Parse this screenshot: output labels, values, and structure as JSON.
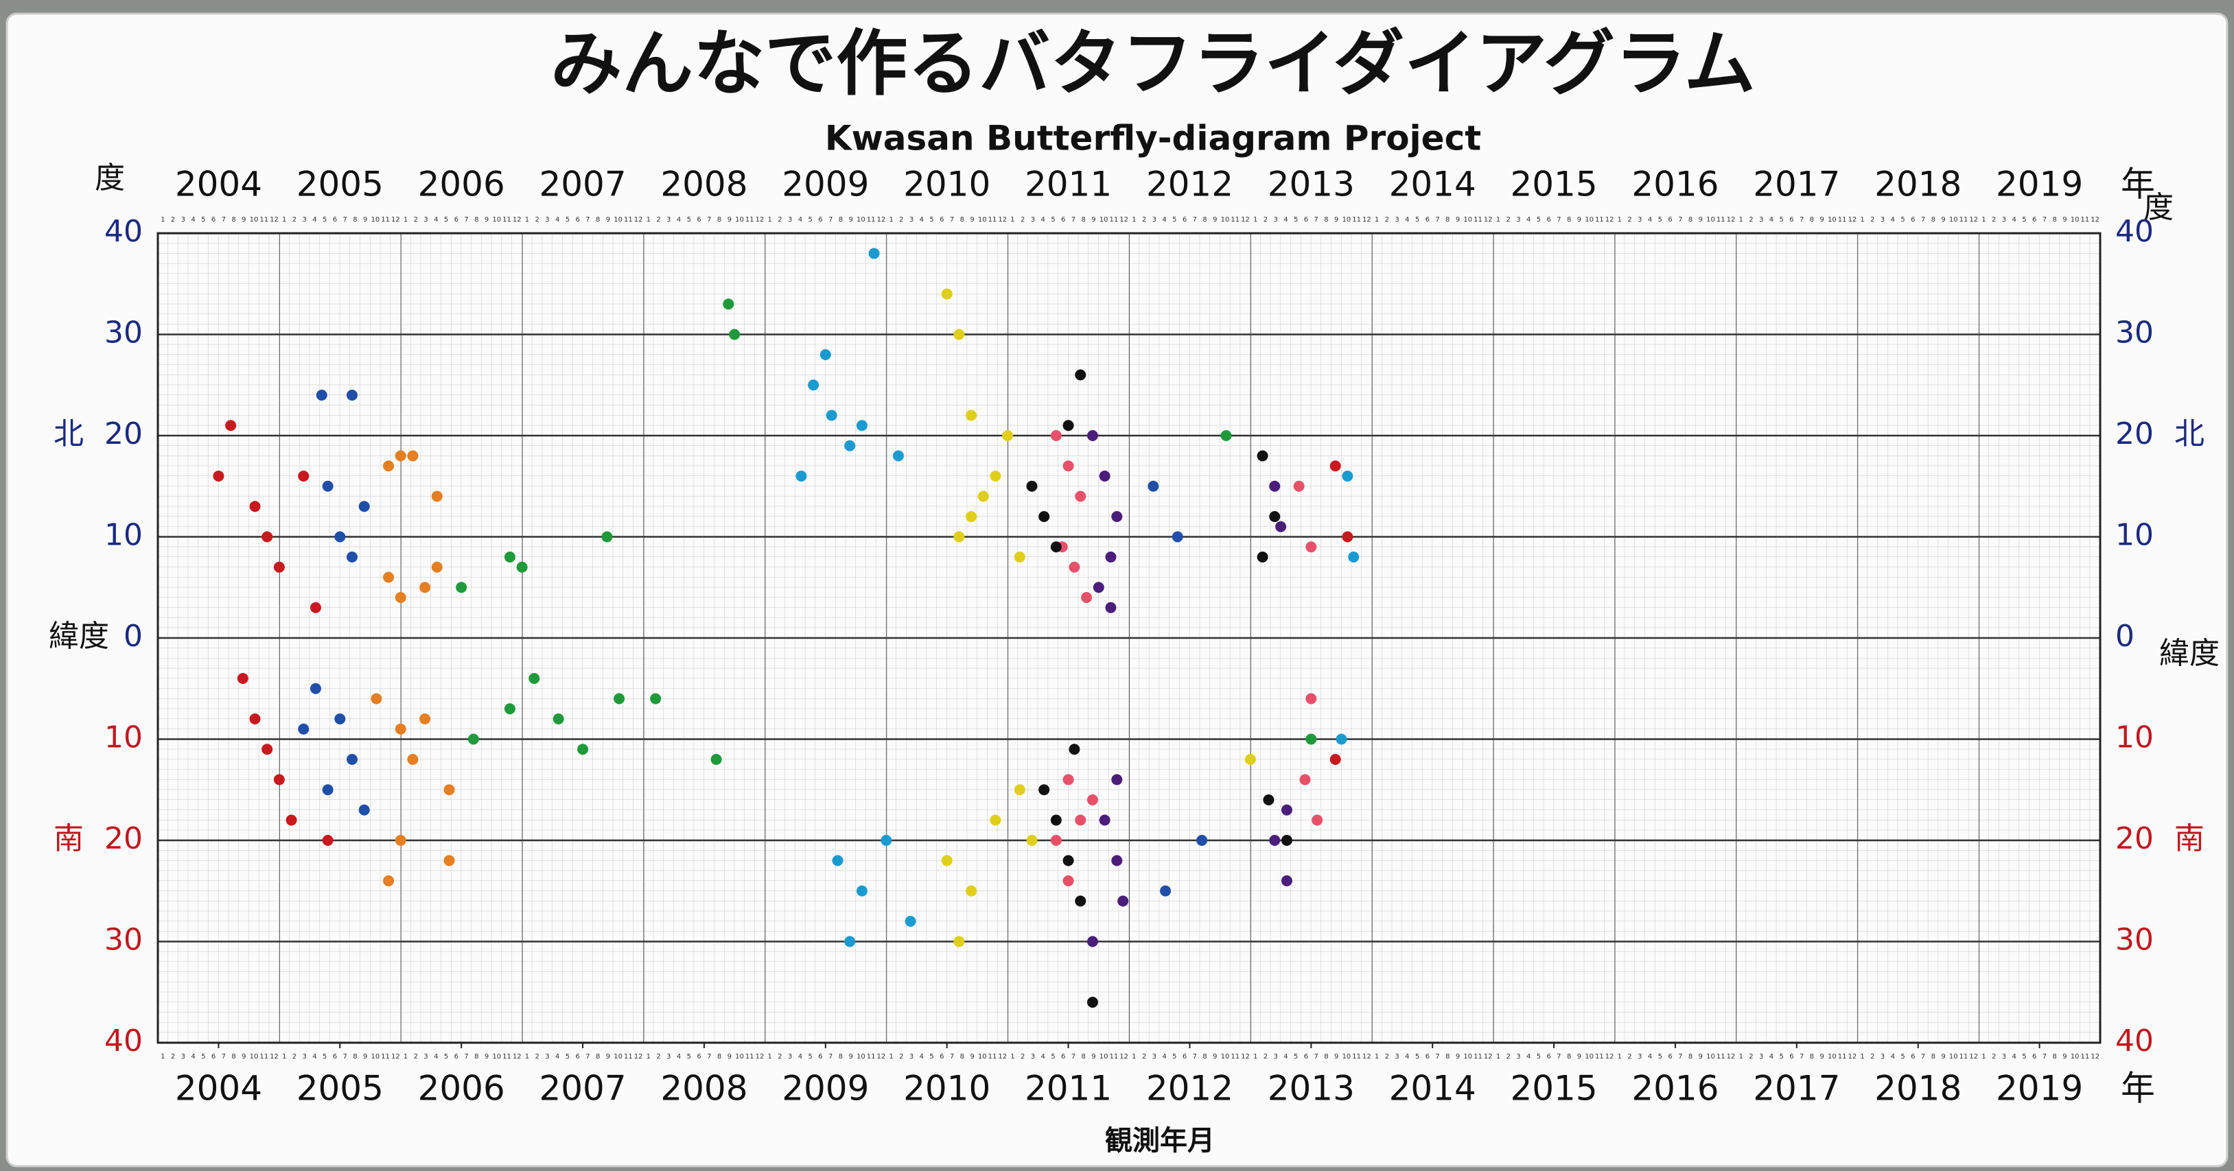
{
  "chart_data": {
    "type": "scatter",
    "title": "みんなで作るバタフライダイアグラム",
    "subtitle": "Kwasan Butterfly-diagram Project",
    "x_label": "観測年月",
    "y_label": "緯度",
    "y_unit": "度",
    "x_unit": "年",
    "north_label": "北",
    "south_label": "南",
    "months": [
      1,
      2,
      3,
      4,
      5,
      6,
      7,
      8,
      9,
      10,
      11,
      12
    ],
    "xlim": [
      2004,
      2020
    ],
    "xticks": [
      {
        "value": 2004.5,
        "label": "2004"
      },
      {
        "value": 2005.5,
        "label": "2005"
      },
      {
        "value": 2006.5,
        "label": "2006"
      },
      {
        "value": 2007.5,
        "label": "2007"
      },
      {
        "value": 2008.5,
        "label": "2008"
      },
      {
        "value": 2009.5,
        "label": "2009"
      },
      {
        "value": 2010.5,
        "label": "2010"
      },
      {
        "value": 2011.5,
        "label": "2011"
      },
      {
        "value": 2012.5,
        "label": "2012"
      },
      {
        "value": 2013.5,
        "label": "2013"
      },
      {
        "value": 2014.5,
        "label": "2014"
      },
      {
        "value": 2015.5,
        "label": "2015"
      },
      {
        "value": 2016.5,
        "label": "2016"
      },
      {
        "value": 2017.5,
        "label": "2017"
      },
      {
        "value": 2018.5,
        "label": "2018"
      },
      {
        "value": 2019.5,
        "label": "2019"
      }
    ],
    "ylim": [
      -40,
      40
    ],
    "yticks": [
      40,
      30,
      20,
      10,
      0,
      {
        "value": -10,
        "label": "10"
      },
      {
        "value": -20,
        "label": "20"
      },
      {
        "value": -30,
        "label": "30"
      },
      {
        "value": -40,
        "label": "40"
      }
    ],
    "grid": true,
    "series": [
      {
        "color": "#c8191e",
        "x": [
          2004.6,
          2004.5,
          2004.8,
          2004.9,
          2005.0,
          2005.2,
          2005.3,
          2004.7,
          2004.8,
          2004.9,
          2005.0,
          2005.1,
          2005.4,
          2013.7,
          2013.8,
          2013.7
        ],
        "values": [
          21,
          16,
          13,
          10,
          7,
          16,
          3,
          -4,
          -8,
          -11,
          -14,
          -18,
          -20,
          17,
          10,
          -12
        ]
      },
      {
        "color": "#1f4fa8",
        "x": [
          2005.35,
          2005.6,
          2005.4,
          2005.5,
          2005.6,
          2005.7,
          2005.3,
          2005.5,
          2005.6,
          2005.2,
          2005.4,
          2005.7,
          2012.2,
          2012.4,
          2012.6,
          2012.3
        ],
        "values": [
          24,
          24,
          15,
          10,
          8,
          13,
          -5,
          -8,
          -12,
          -9,
          -15,
          -17,
          15,
          10,
          -20,
          -25
        ]
      },
      {
        "color": "#e67e22",
        "x": [
          2005.9,
          2006.0,
          2006.1,
          2006.3,
          2005.9,
          2006.0,
          2006.2,
          2006.3,
          2005.8,
          2006.0,
          2006.1,
          2006.2,
          2006.4,
          2006.0,
          2005.9,
          2006.4
        ],
        "values": [
          17,
          18,
          18,
          14,
          6,
          4,
          5,
          7,
          -6,
          -9,
          -12,
          -8,
          -15,
          -20,
          -24,
          -22
        ]
      },
      {
        "color": "#1e9a3a",
        "x": [
          2006.5,
          2006.9,
          2007.0,
          2007.7,
          2006.6,
          2006.9,
          2007.1,
          2007.3,
          2007.5,
          2007.8,
          2008.1,
          2008.6,
          2008.7,
          2008.75,
          2012.8,
          2013.5
        ],
        "values": [
          5,
          8,
          7,
          10,
          -10,
          -7,
          -4,
          -8,
          -11,
          -6,
          -6,
          -12,
          33,
          30,
          20,
          -10
        ]
      },
      {
        "color": "#1a9bd0",
        "x": [
          2009.4,
          2009.5,
          2009.55,
          2009.7,
          2009.8,
          2009.9,
          2010.1,
          2009.3,
          2009.6,
          2009.8,
          2010.0,
          2010.2,
          2013.8,
          2013.85,
          2013.75,
          2009.7
        ],
        "values": [
          25,
          28,
          22,
          19,
          21,
          38,
          18,
          16,
          -22,
          -25,
          -20,
          -28,
          16,
          8,
          -10,
          -30
        ]
      },
      {
        "color": "#e0cf1a",
        "x": [
          2010.5,
          2010.6,
          2010.7,
          2010.8,
          2011.0,
          2010.6,
          2010.7,
          2010.9,
          2011.1,
          2010.5,
          2010.7,
          2010.9,
          2011.1,
          2010.6,
          2011.2,
          2013.0
        ],
        "values": [
          34,
          30,
          22,
          14,
          20,
          10,
          12,
          16,
          8,
          -22,
          -25,
          -18,
          -15,
          -30,
          -20,
          -12
        ]
      },
      {
        "color": "#e8506a",
        "x": [
          2011.4,
          2011.5,
          2011.6,
          2011.45,
          2011.55,
          2011.5,
          2011.6,
          2011.7,
          2011.4,
          2011.5,
          2013.4,
          2013.5,
          2013.45,
          2013.55,
          2013.5,
          2011.65
        ],
        "values": [
          20,
          17,
          14,
          9,
          7,
          -14,
          -18,
          -16,
          -20,
          -24,
          15,
          9,
          -14,
          -18,
          -6,
          4
        ]
      },
      {
        "color": "#111111",
        "x": [
          2011.2,
          2011.3,
          2011.4,
          2011.5,
          2011.6,
          2011.3,
          2011.4,
          2011.5,
          2011.6,
          2011.7,
          2013.1,
          2013.2,
          2013.15,
          2013.3,
          2013.1,
          2011.55
        ],
        "values": [
          15,
          12,
          9,
          21,
          26,
          -15,
          -18,
          -22,
          -26,
          -36,
          18,
          12,
          -16,
          -20,
          8,
          -11
        ]
      },
      {
        "color": "#4a1e7a",
        "x": [
          2011.7,
          2011.8,
          2011.9,
          2011.85,
          2011.75,
          2011.8,
          2011.9,
          2011.95,
          2013.2,
          2013.25,
          2013.3,
          2013.2,
          2011.85,
          2011.7,
          2011.9,
          2013.3
        ],
        "values": [
          20,
          16,
          12,
          8,
          5,
          -18,
          -22,
          -26,
          15,
          11,
          -17,
          -20,
          3,
          -30,
          -14,
          -24
        ]
      }
    ]
  }
}
